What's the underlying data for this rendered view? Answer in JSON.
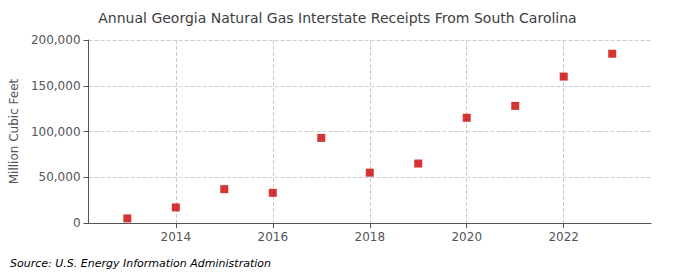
{
  "chart_data": {
    "type": "scatter",
    "title": "Annual Georgia Natural Gas Interstate Receipts From South Carolina",
    "ylabel": "Million Cubic Feet",
    "annotation": "Source: U.S. Energy Information Administration",
    "x": [
      2013,
      2014,
      2015,
      2016,
      2017,
      2018,
      2019,
      2020,
      2021,
      2022,
      2023
    ],
    "values": [
      5000,
      17000,
      37000,
      33000,
      93000,
      55000,
      65000,
      115000,
      128000,
      160000,
      185000
    ],
    "color": "#cc0000",
    "marker": "square",
    "xlim": [
      2012.2,
      2023.8
    ],
    "xticks": [
      2014,
      2016,
      2018,
      2020,
      2022
    ],
    "ylim": [
      0,
      200000
    ],
    "yticks": [
      0,
      {
        "value": 50000,
        "label": "50,000"
      },
      {
        "value": 100000,
        "label": "100,000"
      },
      {
        "value": 150000,
        "label": "150,000"
      },
      {
        "value": 200000,
        "label": "200,000"
      }
    ],
    "grid": true
  }
}
